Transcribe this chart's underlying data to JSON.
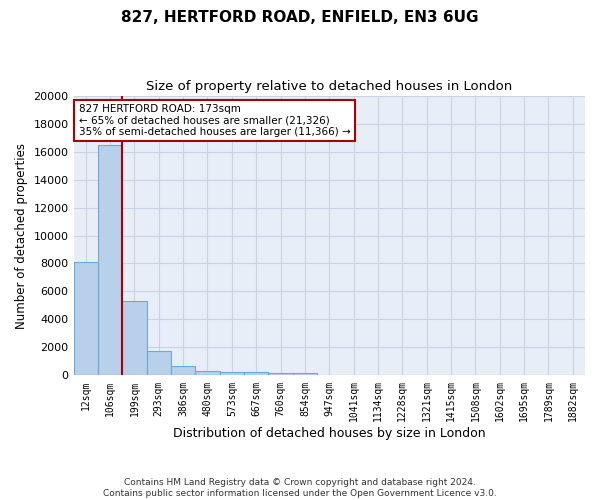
{
  "title1": "827, HERTFORD ROAD, ENFIELD, EN3 6UG",
  "title2": "Size of property relative to detached houses in London",
  "xlabel": "Distribution of detached houses by size in London",
  "ylabel": "Number of detached properties",
  "bar_color": "#b8d0ea",
  "bar_edge_color": "#6aaad4",
  "vline_color": "#aa0000",
  "grid_color": "#c8d4e4",
  "background_color": "#e8eef8",
  "categories": [
    "12sqm",
    "106sqm",
    "199sqm",
    "293sqm",
    "386sqm",
    "480sqm",
    "573sqm",
    "667sqm",
    "760sqm",
    "854sqm",
    "947sqm",
    "1041sqm",
    "1134sqm",
    "1228sqm",
    "1321sqm",
    "1415sqm",
    "1508sqm",
    "1602sqm",
    "1695sqm",
    "1789sqm",
    "1882sqm"
  ],
  "values": [
    8100,
    16500,
    5300,
    1750,
    650,
    350,
    280,
    220,
    180,
    200,
    0,
    0,
    0,
    0,
    0,
    0,
    0,
    0,
    0,
    0,
    0
  ],
  "ylim": [
    0,
    20000
  ],
  "yticks": [
    0,
    2000,
    4000,
    6000,
    8000,
    10000,
    12000,
    14000,
    16000,
    18000,
    20000
  ],
  "vline_x_idx": 1.5,
  "annotation_text": "827 HERTFORD ROAD: 173sqm\n← 65% of detached houses are smaller (21,326)\n35% of semi-detached houses are larger (11,366) →",
  "footer1": "Contains HM Land Registry data © Crown copyright and database right 2024.",
  "footer2": "Contains public sector information licensed under the Open Government Licence v3.0.",
  "title1_fontsize": 11,
  "title2_fontsize": 9.5,
  "tick_fontsize": 7,
  "ylabel_fontsize": 8.5,
  "xlabel_fontsize": 9,
  "ann_fontsize": 7.5,
  "footer_fontsize": 6.5
}
